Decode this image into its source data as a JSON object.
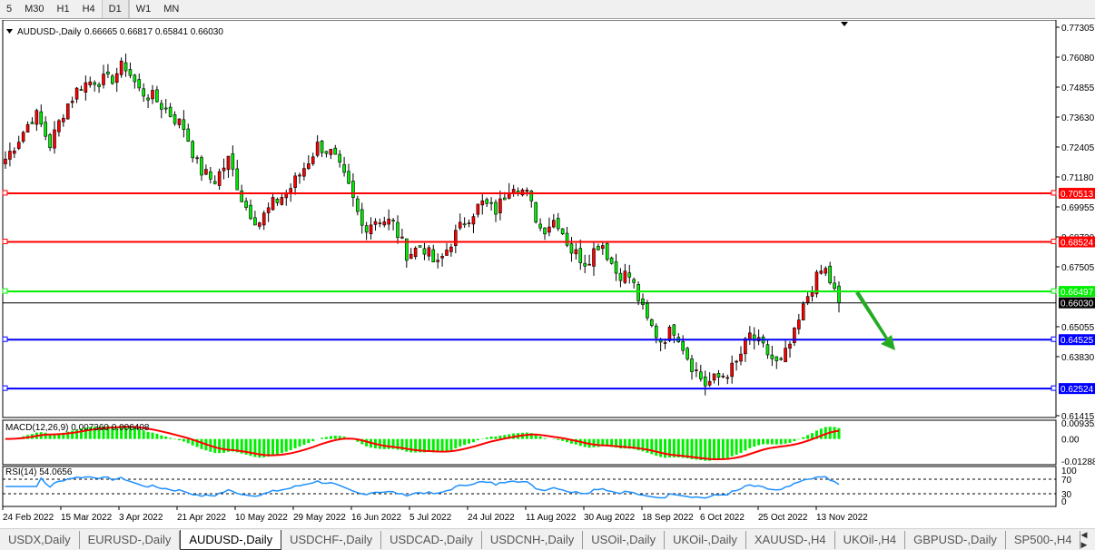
{
  "timeframes": [
    "5",
    "M30",
    "H1",
    "H4",
    "D1",
    "W1",
    "MN"
  ],
  "active_timeframe": "D1",
  "chart_header": {
    "symbol": "AUDUSD-,Daily",
    "ohlc": "0.66665 0.66817 0.65841 0.66030"
  },
  "price_axis": [
    "0.77305",
    "0.76080",
    "0.74855",
    "0.73630",
    "0.72405",
    "0.71180",
    "0.69955",
    "0.68730",
    "0.67505",
    "0.65055",
    "0.63830",
    "0.61415"
  ],
  "levels": [
    {
      "price": "0.70513",
      "color": "#ff0000"
    },
    {
      "price": "0.68524",
      "color": "#ff0000"
    },
    {
      "price": "0.66497",
      "color": "#00ee00"
    },
    {
      "price": "0.66030",
      "color": "#000000"
    },
    {
      "price": "0.64525",
      "color": "#0000ff"
    },
    {
      "price": "0.62524",
      "color": "#0000ff"
    }
  ],
  "macd": {
    "label": "MACD(12,26,9) 0.007360 0.006408",
    "axis": [
      "0.009352",
      "0.00",
      "-0.01288"
    ],
    "histogram_color": "#00ee00",
    "signal_color": "#ff0000"
  },
  "rsi": {
    "label": "RSI(14) 54.0656",
    "axis": [
      "100",
      "70",
      "30",
      "0"
    ],
    "color": "#1e90ff"
  },
  "dates": [
    "24 Feb 2022",
    "15 Mar 2022",
    "3 Apr 2022",
    "21 Apr 2022",
    "10 May 2022",
    "29 May 2022",
    "16 Jun 2022",
    "5 Jul 2022",
    "24 Jul 2022",
    "11 Aug 2022",
    "30 Aug 2022",
    "18 Sep 2022",
    "6 Oct 2022",
    "25 Oct 2022",
    "13 Nov 2022"
  ],
  "tabs": [
    "USDX,Daily",
    "EURUSD-,Daily",
    "AUDUSD-,Daily",
    "USDCHF-,Daily",
    "USDCAD-,Daily",
    "USDCNH-,Daily",
    "USOil-,Daily",
    "UKOil-,Daily",
    "XAUUSD-,H4",
    "UKOil-,H4",
    "GBPUSD-,Daily",
    "SP500-,H4"
  ],
  "active_tab": "AUDUSD-,Daily",
  "annotation": {
    "type": "arrow-down-right",
    "color": "#22aa22"
  },
  "chart_data": {
    "type": "candlestick",
    "bull_color": "#ff0000",
    "bear_color": "#00ee00",
    "ylim": [
      0.61415,
      0.77305
    ],
    "close_approx": [
      0.7192,
      0.7285,
      0.738,
      0.725,
      0.74,
      0.749,
      0.7516,
      0.751,
      0.758,
      0.747,
      0.744,
      0.738,
      0.732,
      0.715,
      0.71,
      0.719,
      0.701,
      0.693,
      0.701,
      0.706,
      0.715,
      0.725,
      0.721,
      0.708,
      0.691,
      0.695,
      0.693,
      0.68,
      0.684,
      0.675,
      0.686,
      0.695,
      0.701,
      0.698,
      0.71,
      0.705,
      0.69,
      0.695,
      0.682,
      0.677,
      0.686,
      0.673,
      0.671,
      0.654,
      0.645,
      0.65,
      0.636,
      0.627,
      0.63,
      0.634,
      0.647,
      0.641,
      0.634,
      0.647,
      0.665,
      0.675,
      0.6603
    ]
  }
}
